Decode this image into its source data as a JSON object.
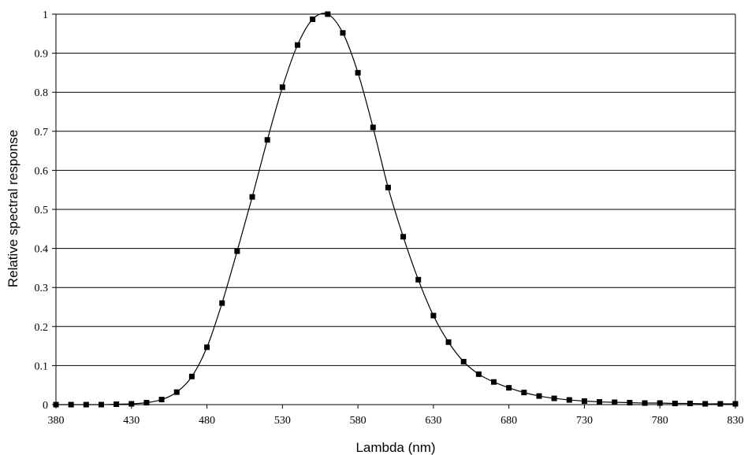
{
  "chart_data": {
    "type": "line",
    "title": "",
    "xlabel": "Lambda (nm)",
    "ylabel": "Relative spectral response",
    "xlim": [
      380,
      830
    ],
    "ylim": [
      0,
      1
    ],
    "x_ticks": [
      380,
      430,
      480,
      530,
      580,
      630,
      680,
      730,
      780,
      830
    ],
    "x_tick_labels": [
      "380",
      "430",
      "480",
      "530",
      "580",
      "630",
      "680",
      "730",
      "780",
      "830"
    ],
    "y_ticks": [
      0,
      0.1,
      0.2,
      0.3,
      0.4,
      0.5,
      0.6,
      0.7,
      0.8,
      0.9,
      1
    ],
    "y_tick_labels": [
      "0",
      "0.1",
      "0.2",
      "0.3",
      "0.4",
      "0.5",
      "0.6",
      "0.7",
      "0.8",
      "0.9",
      "1"
    ],
    "grid": "horizontal",
    "legend": "none",
    "series": [
      {
        "marker": "square",
        "color": "#000000",
        "x": [
          380,
          390,
          400,
          410,
          420,
          430,
          440,
          450,
          460,
          470,
          480,
          490,
          500,
          510,
          520,
          530,
          540,
          550,
          560,
          570,
          580,
          590,
          600,
          610,
          620,
          630,
          640,
          650,
          660,
          670,
          680,
          690,
          700,
          710,
          720,
          730,
          740,
          750,
          760,
          770,
          780,
          790,
          800,
          810,
          820,
          830
        ],
        "values": [
          0,
          0,
          0,
          0,
          0.001,
          0.002,
          0.005,
          0.013,
          0.032,
          0.072,
          0.147,
          0.26,
          0.393,
          0.532,
          0.678,
          0.813,
          0.921,
          0.987,
          1,
          0.952,
          0.85,
          0.71,
          0.556,
          0.43,
          0.32,
          0.228,
          0.16,
          0.11,
          0.078,
          0.058,
          0.043,
          0.031,
          0.022,
          0.016,
          0.012,
          0.009,
          0.007,
          0.006,
          0.005,
          0.004,
          0.004,
          0.003,
          0.003,
          0.002,
          0.002,
          0.002
        ]
      }
    ]
  }
}
